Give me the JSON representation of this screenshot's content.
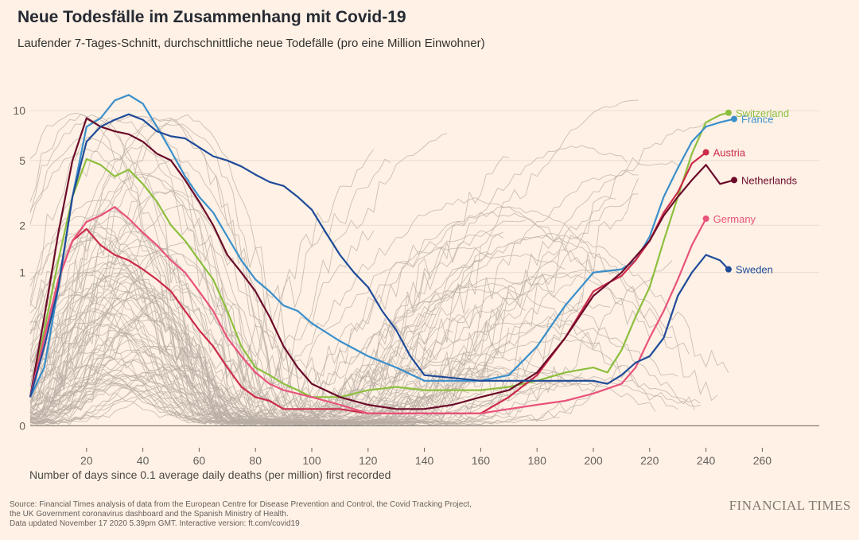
{
  "title": "Neue Todesfälle im Zusammenhang mit Covid-19",
  "subtitle": "Laufender 7-Tages-Schnitt, durchschnittliche neue Todefälle (pro eine Million Einwohner)",
  "xlabel": "Number of days since 0.1 average daily deaths (per million) first recorded",
  "source_lines": [
    "Source: Financial Times analysis of data from the European Centre for Disease Prevention and Control, the Covid Tracking Project,",
    "the UK Government coronavirus dashboard and the Spanish Ministry of Health.",
    "Data updated November 17 2020 5.39pm GMT. Interactive version: ft.com/covid19"
  ],
  "brand": "FINANCIAL TIMES",
  "colors": {
    "background": "#FFF1E5",
    "grid": "#E9DDD2",
    "other_countries": "#B8ADA4",
    "Switzerland": "#8DBF3F",
    "France": "#3A8FCB",
    "Austria": "#CC2B4A",
    "Netherlands": "#6B0A2A",
    "Germany": "#E8537C",
    "Sweden": "#1F4B99"
  },
  "chart_data": {
    "type": "line",
    "title": "Neue Todesfälle im Zusammenhang mit Covid-19",
    "xlabel": "Number of days since 0.1 average daily deaths (per million) first recorded",
    "ylabel": "",
    "y_scale": "log",
    "xlim": [
      0,
      280
    ],
    "ylim": [
      0,
      13
    ],
    "x_ticks": [
      20,
      40,
      60,
      80,
      100,
      120,
      140,
      160,
      180,
      200,
      220,
      240,
      260
    ],
    "y_ticks": [
      0,
      1,
      2,
      5,
      10
    ],
    "grid": true,
    "legend": "direct labels at line ends",
    "series": [
      {
        "name": "Switzerland",
        "x": [
          0,
          5,
          10,
          15,
          20,
          25,
          30,
          35,
          40,
          45,
          50,
          55,
          60,
          65,
          70,
          75,
          80,
          85,
          90,
          95,
          100,
          110,
          120,
          130,
          140,
          150,
          160,
          170,
          180,
          190,
          200,
          205,
          210,
          215,
          220,
          225,
          230,
          235,
          240,
          245,
          248
        ],
        "y": [
          0.1,
          0.4,
          1.2,
          3.0,
          5.1,
          4.7,
          4.0,
          4.4,
          3.6,
          2.8,
          2.0,
          1.6,
          1.2,
          0.9,
          0.55,
          0.3,
          0.2,
          0.17,
          0.14,
          0.12,
          0.1,
          0.1,
          0.12,
          0.13,
          0.12,
          0.12,
          0.12,
          0.13,
          0.15,
          0.18,
          0.2,
          0.18,
          0.28,
          0.5,
          0.8,
          1.6,
          3.0,
          5.5,
          8.5,
          9.4,
          9.7
        ]
      },
      {
        "name": "France",
        "x": [
          0,
          5,
          10,
          15,
          20,
          25,
          30,
          35,
          40,
          45,
          50,
          55,
          60,
          65,
          70,
          75,
          80,
          85,
          90,
          95,
          100,
          110,
          120,
          130,
          140,
          150,
          160,
          170,
          180,
          190,
          200,
          210,
          215,
          220,
          225,
          230,
          235,
          240,
          245,
          250
        ],
        "y": [
          0.1,
          0.2,
          0.8,
          3.0,
          8.0,
          9.0,
          11.5,
          12.4,
          11.0,
          8.0,
          5.7,
          4.0,
          3.0,
          2.4,
          1.7,
          1.2,
          0.9,
          0.75,
          0.6,
          0.55,
          0.45,
          0.33,
          0.25,
          0.2,
          0.15,
          0.15,
          0.15,
          0.17,
          0.3,
          0.6,
          1.0,
          1.05,
          1.2,
          1.7,
          3.0,
          4.5,
          6.5,
          8.0,
          8.5,
          8.9
        ]
      },
      {
        "name": "Austria",
        "x": [
          0,
          5,
          10,
          15,
          20,
          25,
          30,
          35,
          40,
          45,
          50,
          55,
          60,
          65,
          70,
          75,
          80,
          85,
          90,
          100,
          110,
          120,
          130,
          140,
          150,
          160,
          170,
          180,
          190,
          200,
          205,
          210,
          215,
          220,
          225,
          230,
          235,
          240
        ],
        "y": [
          0.1,
          0.35,
          0.9,
          1.6,
          1.9,
          1.5,
          1.3,
          1.2,
          1.05,
          0.9,
          0.75,
          0.55,
          0.4,
          0.3,
          0.2,
          0.13,
          0.1,
          0.09,
          0.07,
          0.07,
          0.07,
          0.06,
          0.06,
          0.06,
          0.06,
          0.06,
          0.1,
          0.17,
          0.35,
          0.75,
          0.85,
          0.95,
          1.2,
          1.6,
          2.4,
          3.2,
          4.8,
          5.6
        ]
      },
      {
        "name": "Netherlands",
        "x": [
          0,
          5,
          10,
          15,
          20,
          25,
          30,
          35,
          40,
          45,
          50,
          55,
          60,
          65,
          70,
          75,
          80,
          85,
          90,
          95,
          100,
          110,
          120,
          130,
          140,
          150,
          160,
          170,
          180,
          190,
          200,
          210,
          220,
          225,
          230,
          235,
          240,
          245,
          250
        ],
        "y": [
          0.1,
          0.5,
          1.8,
          5.0,
          9.0,
          8.0,
          7.5,
          7.2,
          6.5,
          5.5,
          5.0,
          3.8,
          2.8,
          2.0,
          1.3,
          1.0,
          0.75,
          0.5,
          0.3,
          0.2,
          0.14,
          0.1,
          0.08,
          0.07,
          0.07,
          0.08,
          0.1,
          0.12,
          0.18,
          0.35,
          0.7,
          1.0,
          1.6,
          2.3,
          3.0,
          3.8,
          4.7,
          3.6,
          3.8
        ]
      },
      {
        "name": "Germany",
        "x": [
          0,
          5,
          10,
          15,
          20,
          25,
          30,
          35,
          40,
          45,
          50,
          55,
          60,
          65,
          70,
          75,
          80,
          85,
          90,
          100,
          110,
          120,
          130,
          140,
          150,
          160,
          170,
          180,
          190,
          200,
          210,
          215,
          220,
          225,
          230,
          235,
          240
        ],
        "y": [
          0.1,
          0.35,
          0.9,
          1.6,
          2.1,
          2.3,
          2.6,
          2.2,
          1.8,
          1.5,
          1.2,
          1.0,
          0.75,
          0.55,
          0.35,
          0.25,
          0.18,
          0.14,
          0.12,
          0.1,
          0.08,
          0.06,
          0.06,
          0.06,
          0.06,
          0.06,
          0.07,
          0.08,
          0.09,
          0.11,
          0.14,
          0.2,
          0.35,
          0.55,
          0.9,
          1.5,
          2.2
        ]
      },
      {
        "name": "Sweden",
        "x": [
          0,
          5,
          10,
          15,
          20,
          25,
          30,
          35,
          40,
          45,
          50,
          55,
          60,
          65,
          70,
          75,
          80,
          85,
          90,
          95,
          100,
          105,
          110,
          115,
          120,
          125,
          130,
          135,
          140,
          150,
          160,
          170,
          180,
          190,
          200,
          205,
          210,
          215,
          220,
          225,
          230,
          235,
          240,
          245,
          248
        ],
        "y": [
          0.1,
          0.3,
          0.8,
          3.0,
          6.5,
          8.0,
          8.8,
          9.5,
          8.8,
          7.5,
          7.0,
          6.8,
          6.0,
          5.3,
          5.0,
          4.6,
          4.1,
          3.7,
          3.5,
          3.0,
          2.5,
          1.8,
          1.3,
          1.0,
          0.8,
          0.55,
          0.4,
          0.25,
          0.17,
          0.16,
          0.15,
          0.15,
          0.15,
          0.15,
          0.15,
          0.14,
          0.17,
          0.22,
          0.25,
          0.35,
          0.7,
          1.0,
          1.3,
          1.2,
          1.05
        ]
      }
    ]
  }
}
